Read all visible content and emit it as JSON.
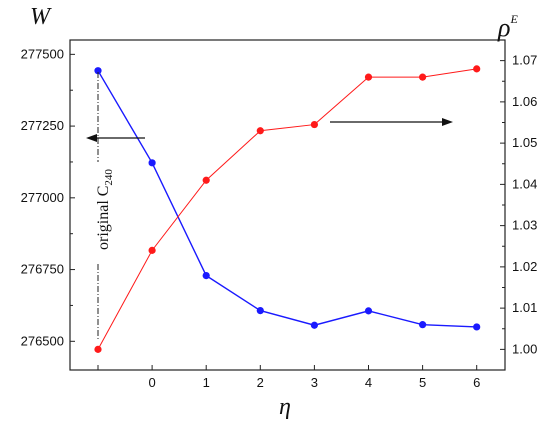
{
  "chart_data": {
    "type": "line",
    "x_categories": [
      "",
      "0",
      "1",
      "2",
      "3",
      "4",
      "5",
      "6"
    ],
    "xlabel": "η",
    "left_axis": {
      "label": "W",
      "range": [
        276400,
        277550
      ],
      "ticks": [
        "276500",
        "276750",
        "277000",
        "277250",
        "277500"
      ]
    },
    "right_axis": {
      "label_base": "ρ",
      "label_sup": "E",
      "range": [
        0.995,
        1.075
      ],
      "ticks": [
        "1.00",
        "1.01",
        "1.02",
        "1.03",
        "1.04",
        "1.05",
        "1.06",
        "1.07"
      ]
    },
    "series": [
      {
        "axis": "left",
        "color": "#1a1aff",
        "x_index": [
          0,
          1,
          2,
          3,
          4,
          5,
          6,
          7
        ],
        "values": [
          277443,
          277122,
          276729,
          276607,
          276556,
          276606,
          276558,
          276550
        ]
      },
      {
        "axis": "right",
        "color": "#ff1a1a",
        "x_index": [
          0,
          1,
          2,
          3,
          4,
          5,
          6,
          7
        ],
        "values": [
          1.0,
          1.024,
          1.041,
          1.053,
          1.0545,
          1.066,
          1.066,
          1.068
        ]
      }
    ],
    "annotation": {
      "text_base": "original C",
      "text_sub": "240"
    },
    "arrows": [
      "left",
      "right"
    ]
  }
}
